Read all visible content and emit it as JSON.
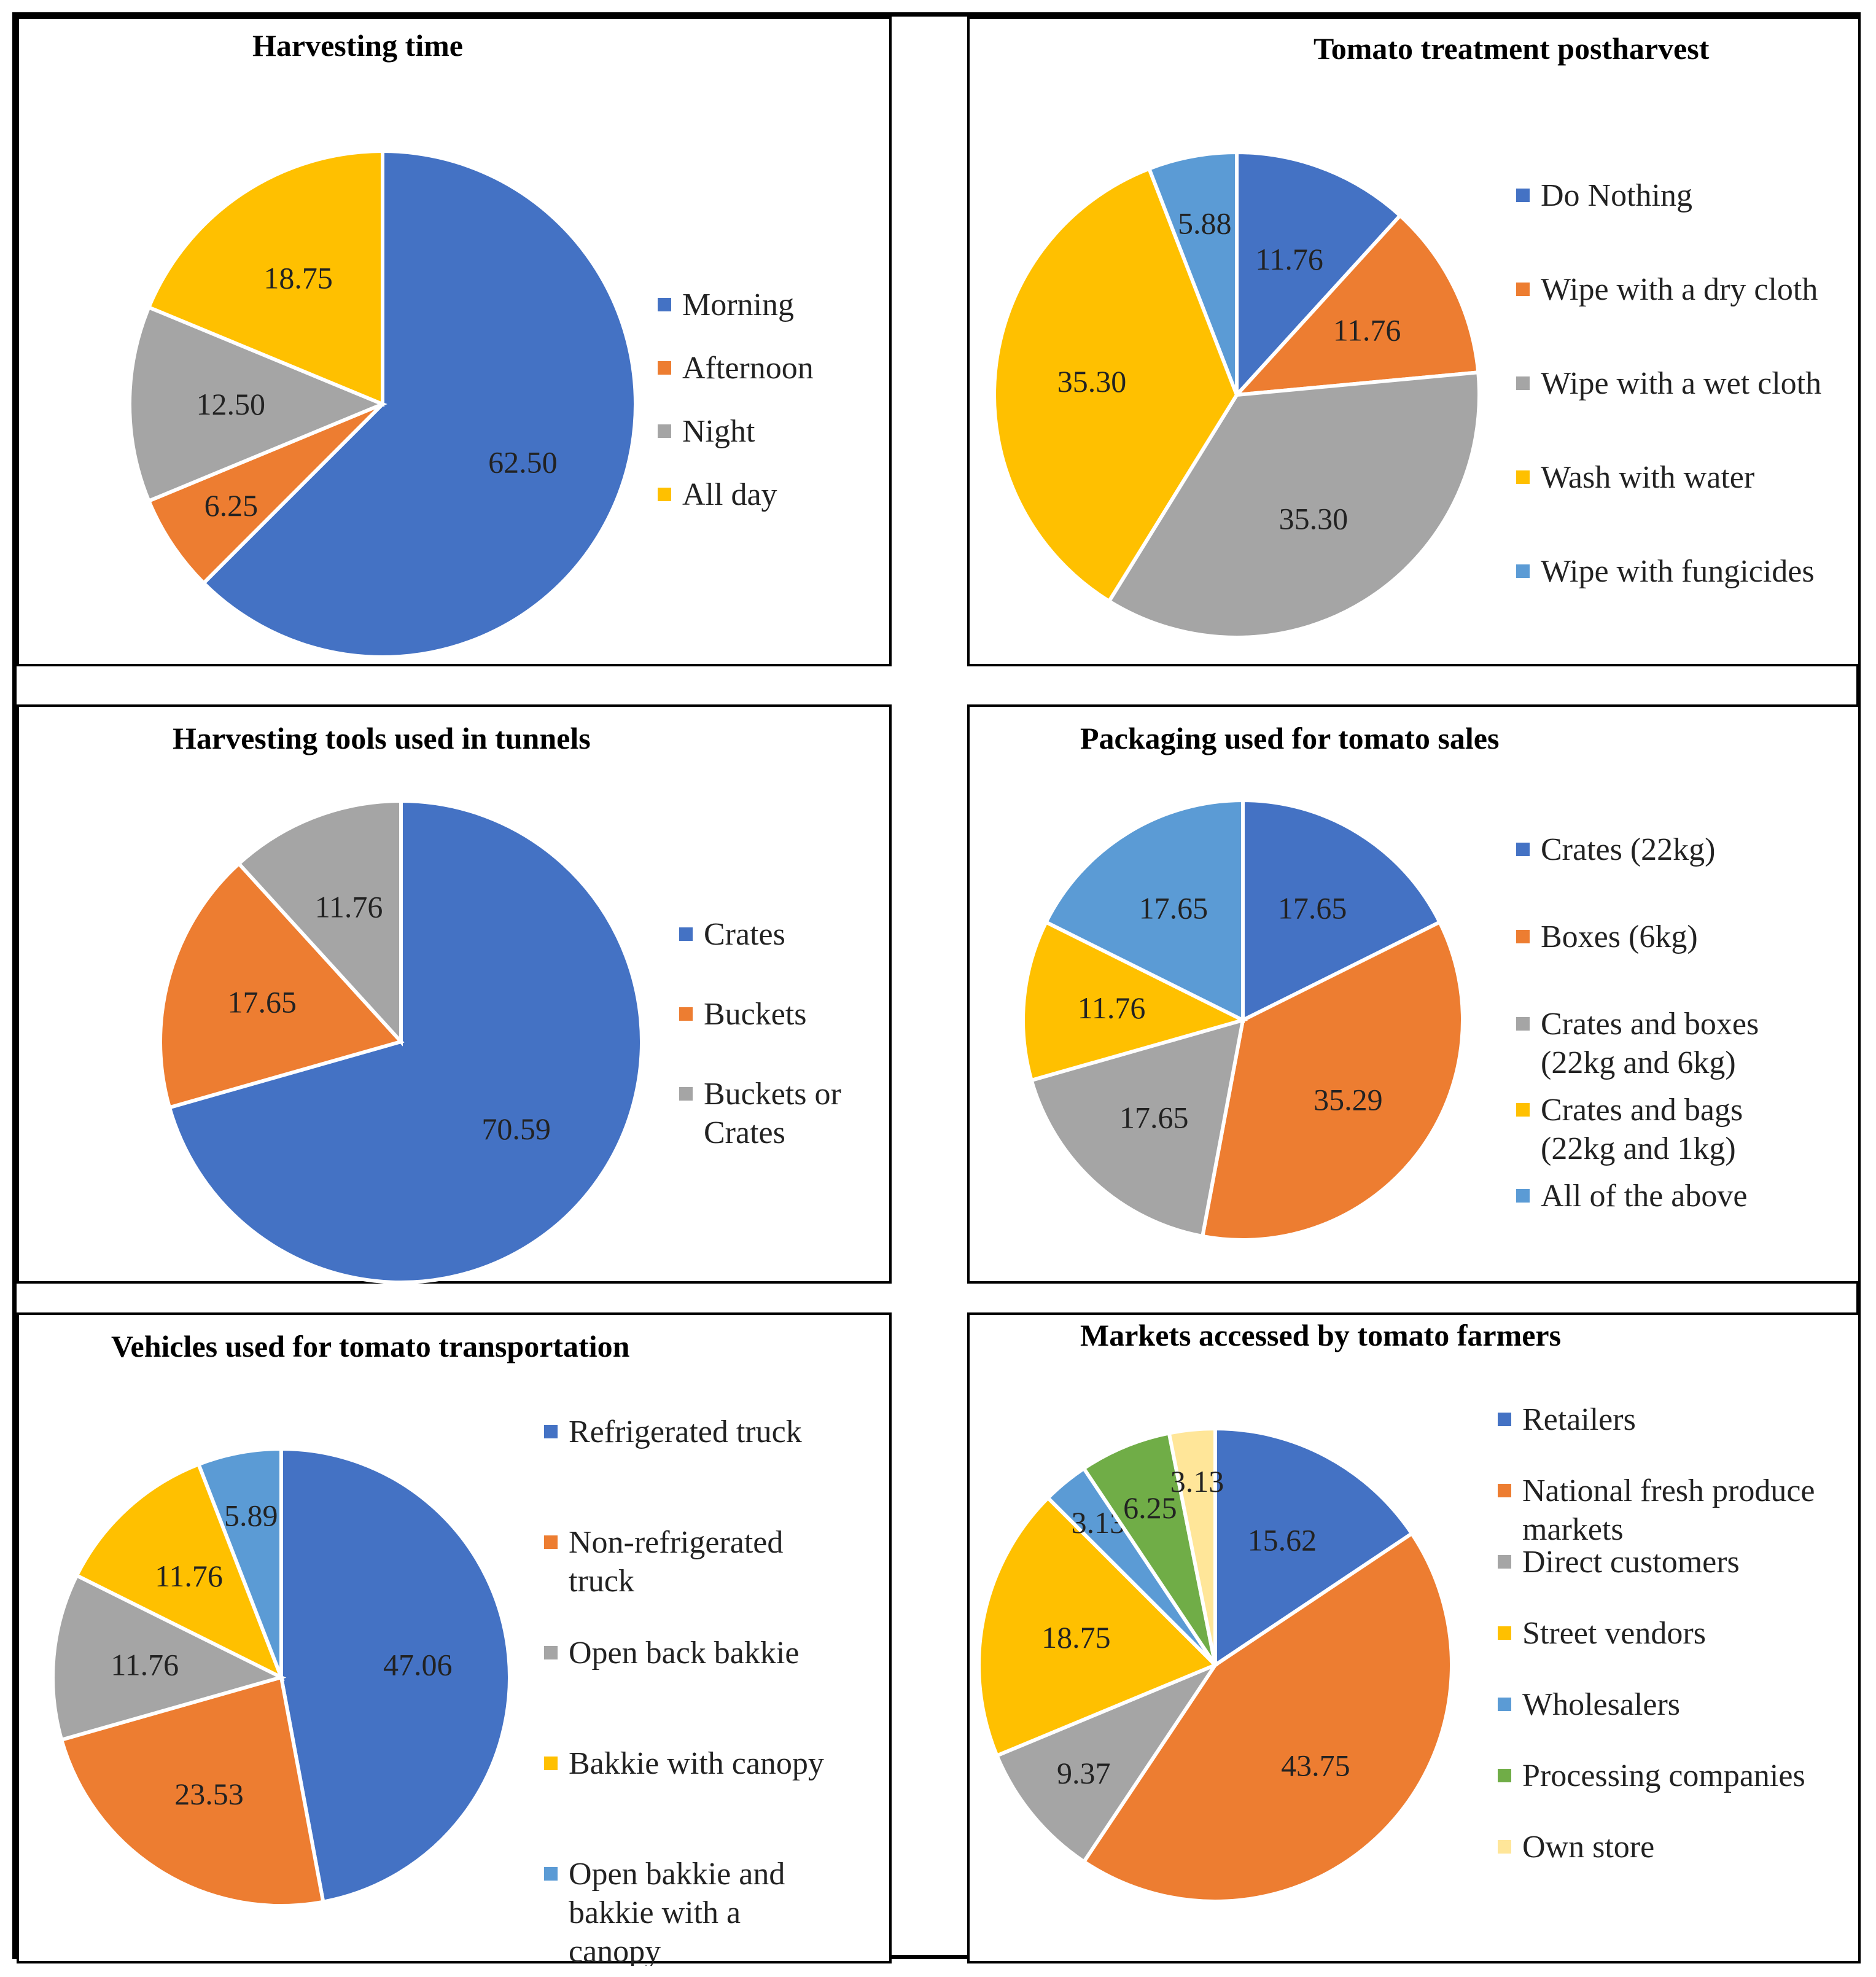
{
  "chart_data": [
    {
      "type": "pie",
      "title": "Harvesting time",
      "categories": [
        "Morning",
        "Afternoon",
        "Night",
        "All day"
      ],
      "values": [
        62.5,
        6.25,
        12.5,
        18.75
      ],
      "value_labels": [
        "62.50",
        "6.25",
        "12.50",
        "18.75"
      ],
      "colors": [
        "#4472C4",
        "#ED7D31",
        "#A5A5A5",
        "#FFC000"
      ],
      "legend_position": "right",
      "legend_labels": [
        [
          "Morning"
        ],
        [
          "Afternoon"
        ],
        [
          "Night"
        ],
        [
          "All day"
        ]
      ]
    },
    {
      "type": "pie",
      "title": "Tomato treatment postharvest",
      "categories": [
        "Do Nothing",
        "Wipe with a dry cloth",
        "Wipe with a wet cloth",
        "Wash with water",
        "Wipe with fungicides"
      ],
      "values": [
        11.76,
        11.76,
        35.3,
        35.3,
        5.88
      ],
      "value_labels": [
        "11.76",
        "11.76",
        "35.30",
        "35.30",
        "5.88"
      ],
      "colors": [
        "#4472C4",
        "#ED7D31",
        "#A5A5A5",
        "#FFC000",
        "#5B9BD5"
      ],
      "legend_position": "right",
      "legend_labels": [
        [
          "Do Nothing"
        ],
        [
          "Wipe with a dry cloth"
        ],
        [
          "Wipe with a wet cloth"
        ],
        [
          "Wash with water"
        ],
        [
          "Wipe with fungicides"
        ]
      ]
    },
    {
      "type": "pie",
      "title": "Harvesting tools used in tunnels",
      "categories": [
        "Crates",
        "Buckets",
        "Buckets or Crates"
      ],
      "values": [
        70.59,
        17.65,
        11.76
      ],
      "value_labels": [
        "70.59",
        "17.65",
        "11.76"
      ],
      "colors": [
        "#4472C4",
        "#ED7D31",
        "#A5A5A5"
      ],
      "legend_position": "right",
      "legend_labels": [
        [
          "Crates"
        ],
        [
          "Buckets"
        ],
        [
          "Buckets or",
          "Crates"
        ]
      ]
    },
    {
      "type": "pie",
      "title": "Packaging used for tomato sales",
      "categories": [
        "Crates (22kg)",
        "Boxes (6kg)",
        "Crates and boxes (22kg and 6kg)",
        "Crates and bags (22kg and 1kg)",
        "All of the above"
      ],
      "values": [
        17.65,
        35.29,
        17.65,
        11.76,
        17.65
      ],
      "value_labels": [
        "17.65",
        "35.29",
        "17.65",
        "11.76",
        "17.65"
      ],
      "colors": [
        "#4472C4",
        "#ED7D31",
        "#A5A5A5",
        "#FFC000",
        "#5B9BD5"
      ],
      "legend_position": "right",
      "legend_labels": [
        [
          "Crates (22kg)"
        ],
        [
          "Boxes (6kg)"
        ],
        [
          "Crates and boxes",
          "(22kg and 6kg)"
        ],
        [
          "Crates and bags",
          "(22kg and 1kg)"
        ],
        [
          "All of the above"
        ]
      ]
    },
    {
      "type": "pie",
      "title": "Vehicles used for tomato transportation",
      "categories": [
        "Refrigerated truck",
        "Non-refrigerated truck",
        "Open back bakkie",
        "Bakkie with canopy",
        "Open bakkie and bakkie with a canopy"
      ],
      "values": [
        47.06,
        23.53,
        11.76,
        11.76,
        5.89
      ],
      "value_labels": [
        "47.06",
        "23.53",
        "11.76",
        "11.76",
        "5.89"
      ],
      "colors": [
        "#4472C4",
        "#ED7D31",
        "#A5A5A5",
        "#FFC000",
        "#5B9BD5"
      ],
      "legend_position": "right",
      "legend_labels": [
        [
          "Refrigerated truck"
        ],
        [
          "Non-refrigerated",
          "truck"
        ],
        [
          "Open back bakkie"
        ],
        [
          "Bakkie with canopy"
        ],
        [
          "Open bakkie and",
          "bakkie with a",
          "canopy"
        ]
      ]
    },
    {
      "type": "pie",
      "title": "Markets accessed by tomato farmers",
      "categories": [
        "Retailers",
        "National fresh produce markets",
        "Direct customers",
        "Street vendors",
        "Wholesalers",
        "Processing companies",
        "Own store"
      ],
      "values": [
        15.62,
        43.75,
        9.37,
        18.75,
        3.13,
        6.25,
        3.13
      ],
      "value_labels": [
        "15.62",
        "43.75",
        "9.37",
        "18.75",
        "3.13",
        "6.25",
        "3.13"
      ],
      "colors": [
        "#4472C4",
        "#ED7D31",
        "#A5A5A5",
        "#FFC000",
        "#5B9BD5",
        "#70AD47",
        "#FFE699"
      ],
      "legend_position": "right",
      "legend_labels": [
        [
          "Retailers"
        ],
        [
          "National fresh produce",
          "markets"
        ],
        [
          "Direct customers"
        ],
        [
          "Street vendors"
        ],
        [
          "Wholesalers"
        ],
        [
          "Processing companies"
        ],
        [
          "Own store"
        ]
      ]
    }
  ]
}
